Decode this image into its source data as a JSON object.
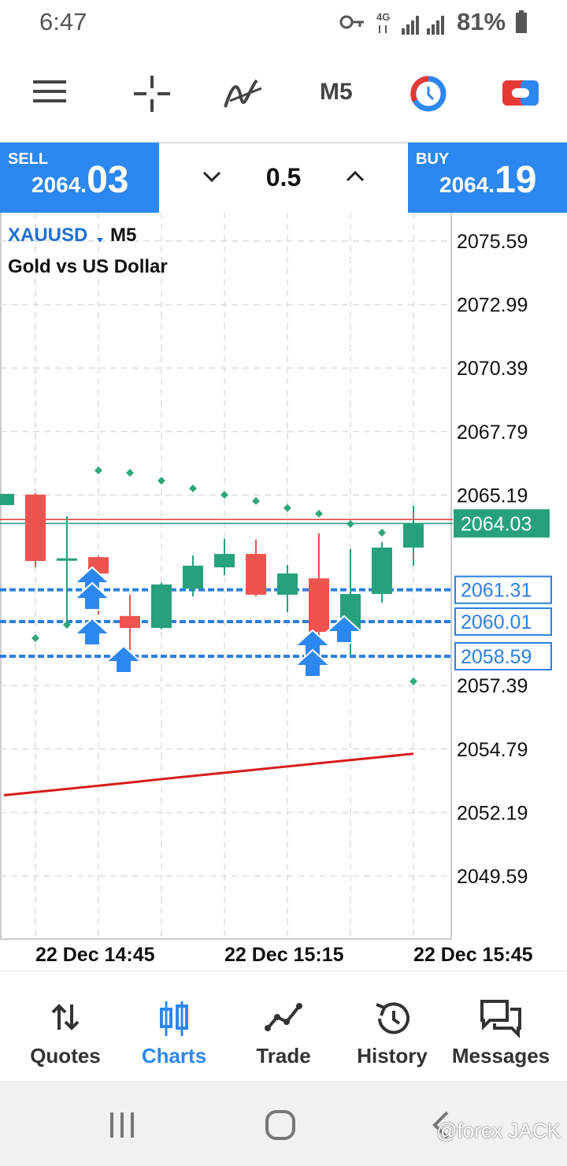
{
  "status_bar": {
    "time": "6:47",
    "network": "4G",
    "battery": "81%"
  },
  "toolbar": {
    "timeframe": "M5"
  },
  "trade_panel": {
    "sell_label": "SELL",
    "sell_price_main": "2064.",
    "sell_price_big": "03",
    "volume": "0.5",
    "buy_label": "BUY",
    "buy_price_main": "2064.",
    "buy_price_big": "19"
  },
  "chart_data": {
    "type": "candlestick",
    "symbol": "XAUUSD",
    "timeframe": "M5",
    "title": "Gold vs US Dollar",
    "categories": [
      null,
      "22 Dec 14:45",
      null,
      null,
      null,
      null,
      null,
      "22 Dec 15:15",
      null,
      null,
      null,
      null,
      null,
      "22 Dec 15:45"
    ],
    "open": [
      2064.78,
      2065.21,
      2062.5,
      2062.65,
      2060.24,
      2059.75,
      2061.36,
      2062.23,
      2062.78,
      2061.11,
      2061.78,
      2059.59,
      2061.14,
      2063.04
    ],
    "high": [
      2065.24,
      2065.27,
      2064.33,
      2062.7,
      2061.11,
      2061.6,
      2062.72,
      2063.4,
      2063.37,
      2062.33,
      2063.62,
      2062.98,
      2063.27,
      2064.75
    ],
    "low": [
      2064.78,
      2062.23,
      2059.98,
      2060.3,
      2058.85,
      2059.7,
      2061.04,
      2061.91,
      2061.04,
      2060.4,
      2059.27,
      2058.62,
      2060.78,
      2062.3
    ],
    "close": [
      2065.24,
      2062.49,
      2062.6,
      2061.98,
      2059.75,
      2061.53,
      2062.3,
      2062.78,
      2061.11,
      2061.98,
      2059.59,
      2061.14,
      2063.04,
      2064.04
    ],
    "up_color": "#26a17b",
    "down_color": "#ef5350",
    "psar": {
      "color": "#2fa878",
      "values": [
        null,
        2059.33,
        2059.88,
        2066.2,
        2066.1,
        2065.78,
        2065.46,
        2065.2,
        2064.95,
        2064.66,
        2064.43,
        2064.01,
        2063.65,
        2057.56
      ]
    },
    "ma": {
      "color": "#d81b1b",
      "values": [
        2052.9,
        2053.03,
        2053.16,
        2053.29,
        2053.42,
        2053.56,
        2053.69,
        2053.82,
        2053.95,
        2054.08,
        2054.21,
        2054.34,
        2054.47,
        2054.6
      ]
    },
    "price_lines": [
      {
        "value": 2064.19,
        "color": "#e53935",
        "labeled": false
      },
      {
        "value": 2064.03,
        "color": "#26a17b",
        "labeled": true
      }
    ],
    "order_lines": {
      "color": "#2d7fe0",
      "values": [
        2061.31,
        2060.01,
        2058.59
      ]
    },
    "ylim": [
      2047.01,
      2076.75
    ],
    "yticks": [
      2075.59,
      2072.99,
      2070.39,
      2067.79,
      2065.19,
      2057.39,
      2054.79,
      2052.19,
      2049.59
    ],
    "grid": true
  },
  "nav": {
    "items": [
      "Quotes",
      "Charts",
      "Trade",
      "History",
      "Messages"
    ],
    "active": 1
  },
  "watermark": "@forex JACK"
}
